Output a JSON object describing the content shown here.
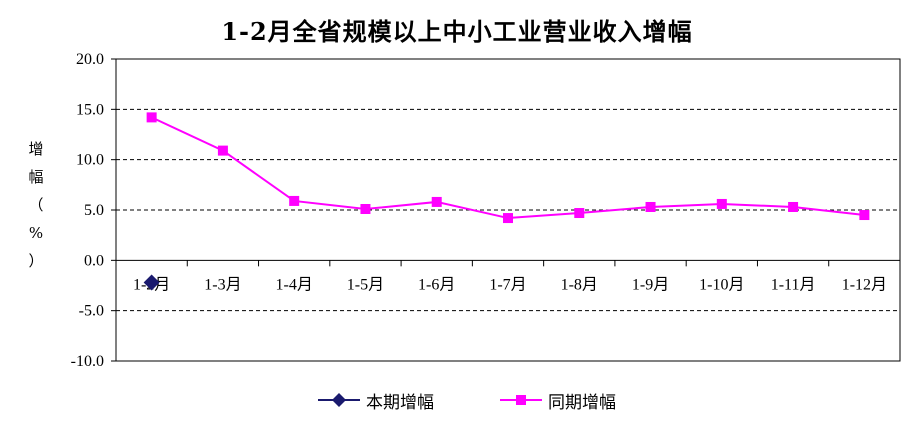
{
  "chart_data": {
    "type": "line",
    "title": "1-2月全省规模以上中小工业营业收入增幅",
    "ylabel": "增幅（%）",
    "ylabel_chars": [
      "增",
      "幅",
      "（",
      "%",
      "）"
    ],
    "categories": [
      "1-2月",
      "1-3月",
      "1-4月",
      "1-5月",
      "1-6月",
      "1-7月",
      "1-8月",
      "1-9月",
      "1-10月",
      "1-11月",
      "1-12月"
    ],
    "ylim": [
      -10.0,
      20.0
    ],
    "yticks": [
      "20.0",
      "15.0",
      "10.0",
      "5.0",
      "0.0",
      "-5.0",
      "-10.0"
    ],
    "ytick_values": [
      20,
      15,
      10,
      5,
      0,
      -5,
      -10
    ],
    "grid": "dashed horizontal",
    "legend_position": "bottom",
    "series": [
      {
        "name": "本期增幅",
        "color": "#1a1a6e",
        "marker": "diamond",
        "values": [
          -2.2,
          null,
          null,
          null,
          null,
          null,
          null,
          null,
          null,
          null,
          null
        ]
      },
      {
        "name": "同期增幅",
        "color": "#ff00ff",
        "marker": "square",
        "values": [
          14.2,
          10.9,
          5.9,
          5.1,
          5.8,
          4.2,
          4.7,
          5.3,
          5.6,
          5.3,
          4.5
        ]
      }
    ]
  }
}
